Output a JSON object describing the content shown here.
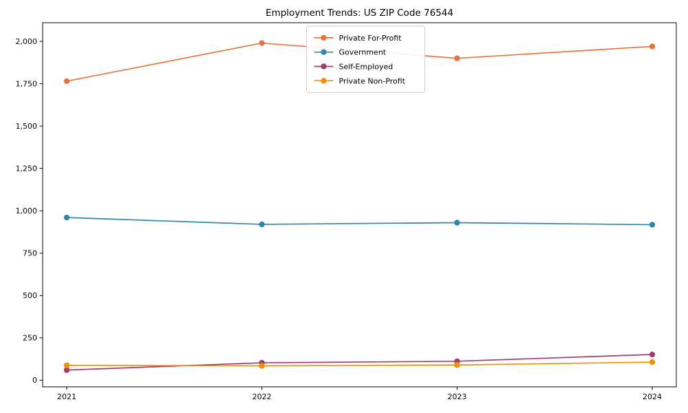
{
  "chart_data": {
    "type": "line",
    "title": "Employment Trends: US ZIP Code 76544",
    "x": [
      "2021",
      "2022",
      "2023",
      "2024"
    ],
    "series": [
      {
        "name": "Private For-Profit",
        "color": "#E8743B",
        "values": [
          1765,
          1990,
          1900,
          1970
        ]
      },
      {
        "name": "Government",
        "color": "#2E86AB",
        "values": [
          960,
          920,
          930,
          918
        ]
      },
      {
        "name": "Self-Employed",
        "color": "#A23B72",
        "values": [
          60,
          103,
          112,
          152
        ]
      },
      {
        "name": "Private Non-Profit",
        "color": "#F18F01",
        "values": [
          88,
          85,
          90,
          107
        ]
      }
    ],
    "xlabel": "",
    "ylabel": "",
    "ylim": [
      -39,
      2110
    ],
    "yticks": [
      0,
      250,
      500,
      750,
      1000,
      1250,
      1500,
      1750,
      2000
    ],
    "ytick_labels": [
      "0",
      "250",
      "500",
      "750",
      "1,000",
      "1,250",
      "1,500",
      "1,750",
      "2,000"
    ],
    "grid": false,
    "legend_position": "upper center",
    "marker": "circle",
    "background": "#ffffff",
    "axis_color": "#000000",
    "legend_border_color": "#cccccc"
  }
}
